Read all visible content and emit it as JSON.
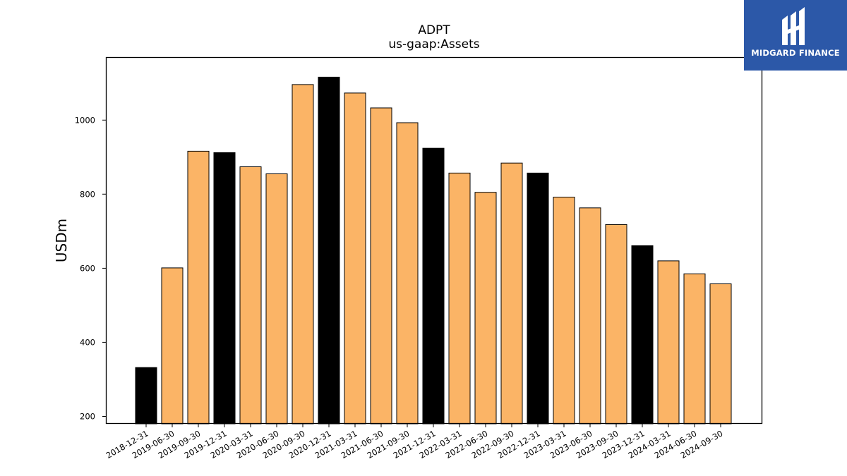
{
  "chart_data": {
    "type": "bar",
    "title": "ADPT",
    "subtitle": "us-gaap:Assets",
    "xlabel": "",
    "ylabel": "USDm",
    "ylim": [
      180,
      1170
    ],
    "yticks": [
      200,
      400,
      600,
      800,
      1000
    ],
    "grid": false,
    "categories": [
      "2018-12-31",
      "2019-06-30",
      "2019-09-30",
      "2019-12-31",
      "2020-03-31",
      "2020-06-30",
      "2020-09-30",
      "2020-12-31",
      "2021-03-31",
      "2021-06-30",
      "2021-09-30",
      "2021-12-31",
      "2022-03-31",
      "2022-06-30",
      "2022-09-30",
      "2022-12-31",
      "2023-03-31",
      "2023-06-30",
      "2023-09-30",
      "2023-12-31",
      "2024-03-31",
      "2024-06-30",
      "2024-09-30"
    ],
    "values": [
      332,
      601,
      916,
      912,
      874,
      855,
      1096,
      1116,
      1073,
      1033,
      993,
      924,
      857,
      805,
      884,
      857,
      792,
      763,
      718,
      661,
      620,
      585,
      558
    ],
    "highlight": [
      true,
      false,
      false,
      true,
      false,
      false,
      false,
      true,
      false,
      false,
      false,
      true,
      false,
      false,
      false,
      true,
      false,
      false,
      false,
      true,
      false,
      false,
      false
    ],
    "colors": {
      "bar": "#fbb466",
      "highlight_bar": "#000000",
      "edge": "#000000"
    }
  },
  "logo": {
    "text": "MIDGARD FINANCE",
    "background": "#2c58a8",
    "icon": "midgard-logo-icon"
  }
}
